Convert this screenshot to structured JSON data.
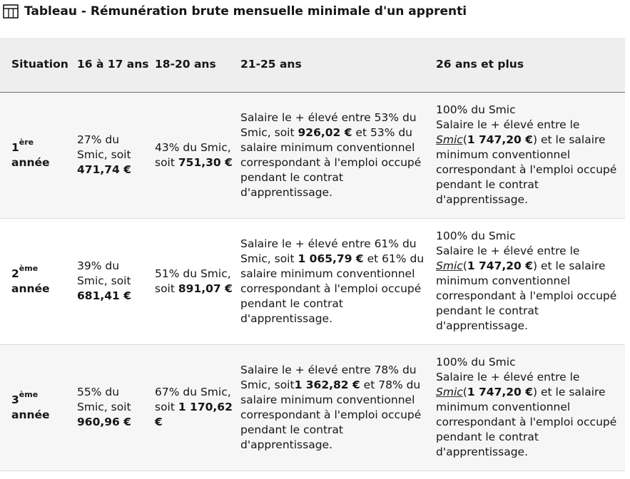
{
  "caption": {
    "icon": "table-icon",
    "title": "Tableau - Rémunération brute mensuelle minimale d'un apprenti"
  },
  "table": {
    "headers": [
      "Situation",
      "16 à 17 ans",
      "18-20 ans",
      "21-25 ans",
      "26 ans et plus"
    ],
    "rows": [
      {
        "situation": {
          "num": "1",
          "sup": "ère",
          "word": "année"
        },
        "age_16_17": {
          "text": "27% du Smic, soit ",
          "amount": "471,74 €"
        },
        "age_18_20": {
          "text": "43% du Smic, soit ",
          "amount": "751,30 €"
        },
        "age_21_25": {
          "before": "Salaire le + élevé entre 53% du Smic, soit ",
          "amount": "926,02 €",
          "after": " et 53% du salaire minimum conventionnel correspondant à l'emploi occupé pendant le contrat d'apprentissage."
        },
        "age_26_plus": {
          "line1": "100% du Smic",
          "before": "Salaire le + élevé entre le ",
          "smic": "Smic",
          "paren_open": "(",
          "amount": "1 747,20 €",
          "after": ") et le salaire minimum conventionnel correspondant à l'emploi occupé pendant le contrat d'apprentissage."
        }
      },
      {
        "situation": {
          "num": "2",
          "sup": "ème",
          "word": "année"
        },
        "age_16_17": {
          "text": "39% du Smic, soit ",
          "amount": "681,41 €"
        },
        "age_18_20": {
          "text": "51% du Smic, soit ",
          "amount": "891,07 €"
        },
        "age_21_25": {
          "before": "Salaire le + élevé entre 61% du Smic, soit ",
          "amount": "1 065,79 €",
          "after": " et 61% du salaire minimum conventionnel correspondant à l'emploi occupé pendant le contrat d'apprentissage."
        },
        "age_26_plus": {
          "line1": "100% du Smic",
          "before": "Salaire le + élevé entre le ",
          "smic": "Smic",
          "paren_open": "(",
          "amount": "1 747,20 €",
          "after": ") et le salaire minimum conventionnel correspondant à l'emploi occupé pendant le contrat d'apprentissage."
        }
      },
      {
        "situation": {
          "num": "3",
          "sup": "ème",
          "word": "année"
        },
        "age_16_17": {
          "text": "55% du Smic, soit ",
          "amount": "960,96 €"
        },
        "age_18_20": {
          "text": "67% du Smic, soit ",
          "amount": "1 170,62 €"
        },
        "age_21_25": {
          "before": "Salaire le + élevé entre 78% du Smic, soit",
          "amount": "1 362,82 €",
          "after": " et 78% du salaire minimum conventionnel correspondant à l'emploi occupé pendant le contrat d'apprentissage."
        },
        "age_26_plus": {
          "line1": "100% du Smic",
          "before": "Salaire le + élevé entre le ",
          "smic": "Smic",
          "paren_open": "(",
          "amount": "1 747,20 €",
          "after": ") et le salaire minimum conventionnel correspondant à l'emploi occupé pendant le contrat d'apprentissage."
        }
      }
    ]
  }
}
